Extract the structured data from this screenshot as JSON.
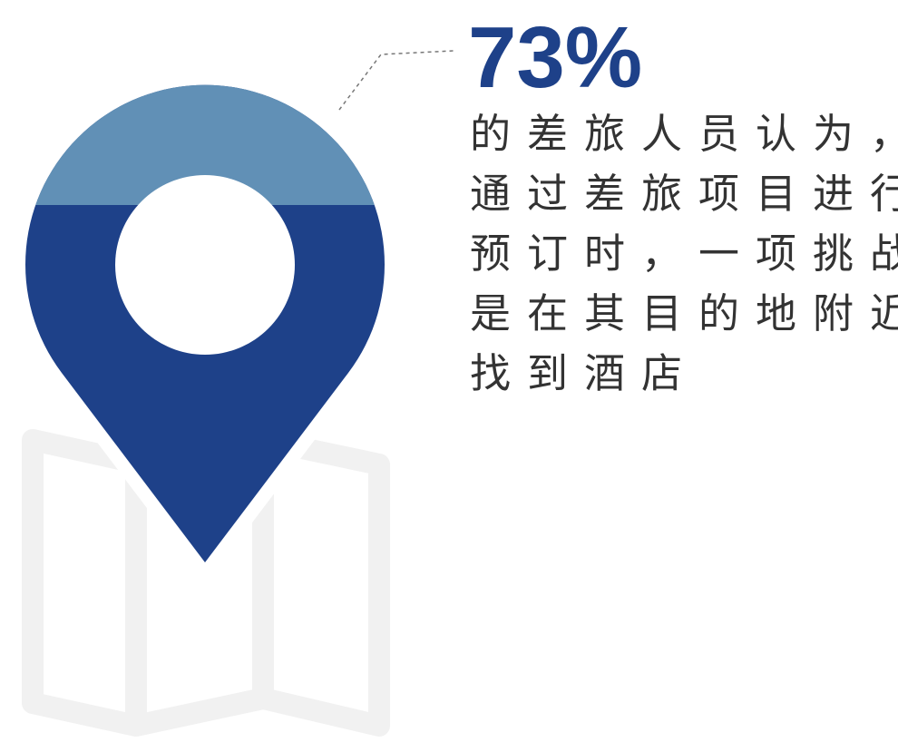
{
  "stat": {
    "value": "73%",
    "lines": [
      "的差旅人员认为，",
      "通过差旅项目进行",
      "预订时，一项挑战",
      "是在其目的地附近",
      "找到酒店"
    ]
  }
}
